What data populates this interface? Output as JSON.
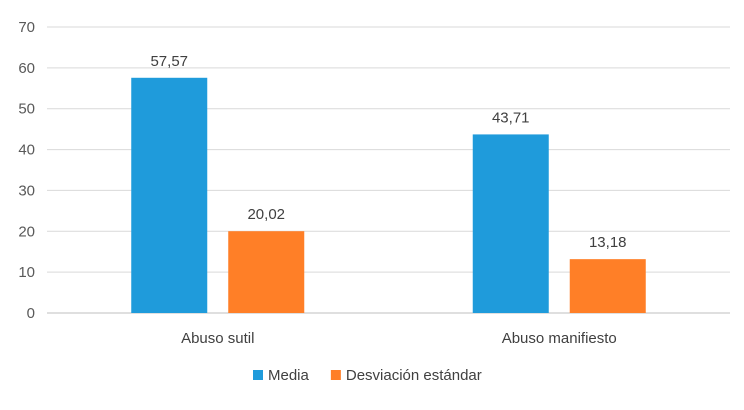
{
  "chart_data": {
    "type": "bar",
    "title": "",
    "xlabel": "",
    "ylabel": "",
    "ylim": [
      0,
      70
    ],
    "yticks": [
      0,
      10,
      20,
      30,
      40,
      50,
      60,
      70
    ],
    "grid": true,
    "legend_position": "bottom",
    "categories": [
      "Abuso sutil",
      "Abuso manifiesto"
    ],
    "series": [
      {
        "name": "Media",
        "color": "#1F9BDB",
        "values": [
          57.57,
          43.71
        ],
        "labels": [
          "57,57",
          "43,71"
        ]
      },
      {
        "name": "Desviación estándar",
        "color": "#FF7F27",
        "values": [
          20.02,
          13.18
        ],
        "labels": [
          "20,02",
          "13,18"
        ]
      }
    ]
  }
}
